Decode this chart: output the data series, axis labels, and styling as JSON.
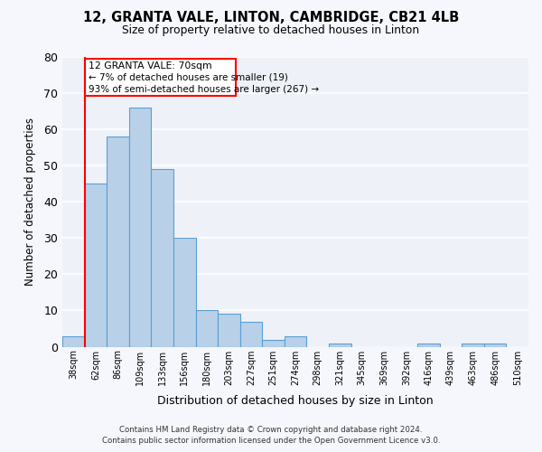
{
  "title": "12, GRANTA VALE, LINTON, CAMBRIDGE, CB21 4LB",
  "subtitle": "Size of property relative to detached houses in Linton",
  "xlabel": "Distribution of detached houses by size in Linton",
  "ylabel": "Number of detached properties",
  "bar_color": "#b8d0e8",
  "bar_edge_color": "#5a9fd4",
  "background_color": "#eef2f8",
  "fig_background": "#f5f7fc",
  "grid_color": "#ffffff",
  "categories": [
    "38sqm",
    "62sqm",
    "86sqm",
    "109sqm",
    "133sqm",
    "156sqm",
    "180sqm",
    "203sqm",
    "227sqm",
    "251sqm",
    "274sqm",
    "298sqm",
    "321sqm",
    "345sqm",
    "369sqm",
    "392sqm",
    "416sqm",
    "439sqm",
    "463sqm",
    "486sqm",
    "510sqm"
  ],
  "values": [
    3,
    45,
    58,
    66,
    49,
    30,
    10,
    9,
    7,
    2,
    3,
    0,
    1,
    0,
    0,
    0,
    1,
    0,
    1,
    1,
    0
  ],
  "ylim": [
    0,
    80
  ],
  "yticks": [
    0,
    10,
    20,
    30,
    40,
    50,
    60,
    70,
    80
  ],
  "red_line_x": 0.5,
  "marker_label": "12 GRANTA VALE: 70sqm",
  "marker_smaller": "← 7% of detached houses are smaller (19)",
  "marker_larger": "93% of semi-detached houses are larger (267) →",
  "footer_line1": "Contains HM Land Registry data © Crown copyright and database right 2024.",
  "footer_line2": "Contains public sector information licensed under the Open Government Licence v3.0."
}
